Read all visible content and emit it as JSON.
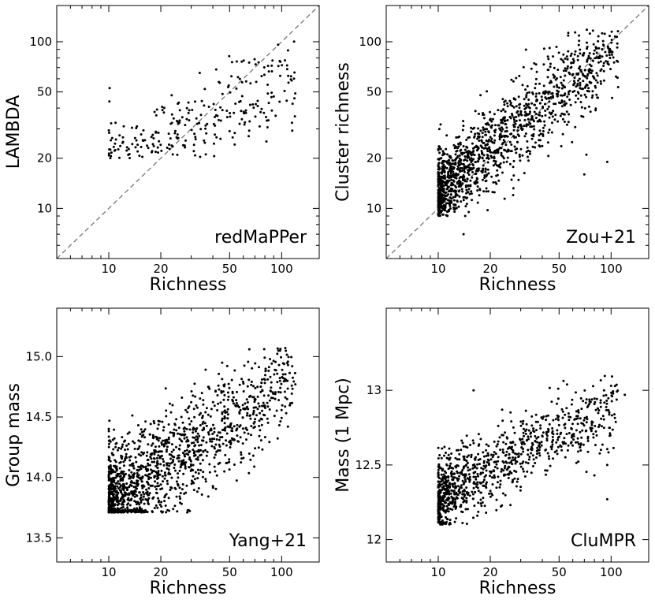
{
  "figure_title": "",
  "chart_data": [
    {
      "id": "panel-redmapper",
      "type": "scatter",
      "panel_label": "redMaPPer",
      "xlabel": "Richness",
      "ylabel": "LAMBDA",
      "xscale": "log",
      "yscale": "log",
      "xlim": [
        5,
        165
      ],
      "ylim": [
        5,
        165
      ],
      "xticks": [
        10,
        20,
        50,
        100
      ],
      "xtick_labels": [
        "10",
        "20",
        "50",
        "100"
      ],
      "yticks": [
        10,
        20,
        50,
        100
      ],
      "ytick_labels": [
        "10",
        "20",
        "50",
        "100"
      ],
      "diagonal_line": true,
      "legend": "none",
      "points_description": "approx. 500 cluster points",
      "n_points": 500,
      "seed": 11,
      "x_range": [
        10,
        120
      ],
      "y_min": 20,
      "y_max": 110,
      "y_slope": 0.6,
      "y_intercept_log": 0.55,
      "y_scatter_log": 0.16,
      "outliers": []
    },
    {
      "id": "panel-zou21",
      "type": "scatter",
      "panel_label": "Zou+21",
      "xlabel": "Richness",
      "ylabel": "Cluster richness",
      "xscale": "log",
      "yscale": "log",
      "xlim": [
        5,
        165
      ],
      "ylim": [
        5,
        165
      ],
      "xticks": [
        10,
        20,
        50,
        100
      ],
      "xtick_labels": [
        "10",
        "20",
        "50",
        "100"
      ],
      "yticks": [
        10,
        20,
        50,
        100
      ],
      "ytick_labels": [
        "10",
        "20",
        "50",
        "100"
      ],
      "diagonal_line": true,
      "legend": "none",
      "points_description": "approx. 1500 cluster points",
      "n_points": 1500,
      "seed": 23,
      "x_range": [
        10,
        110
      ],
      "y_min": 9,
      "y_max": 120,
      "y_slope": 0.85,
      "y_intercept_log": 0.25,
      "y_scatter_log": 0.13,
      "outliers": [
        [
          14,
          7
        ],
        [
          70,
          16
        ],
        [
          95,
          19
        ],
        [
          72,
          21
        ]
      ]
    },
    {
      "id": "panel-yang21",
      "type": "scatter",
      "panel_label": "Yang+21",
      "xlabel": "Richness",
      "ylabel": "Group mass",
      "xscale": "log",
      "yscale": "linear",
      "xlim": [
        5,
        165
      ],
      "ylim": [
        13.3,
        15.4
      ],
      "xticks": [
        10,
        20,
        50,
        100
      ],
      "xtick_labels": [
        "10",
        "20",
        "50",
        "100"
      ],
      "yticks": [
        13.5,
        14.0,
        14.5,
        15.0
      ],
      "ytick_labels": [
        "13.5",
        "14.0",
        "14.5",
        "15.0"
      ],
      "diagonal_line": false,
      "legend": "none",
      "points_description": "approx. 1500 group points",
      "n_points": 1500,
      "seed": 37,
      "x_range": [
        10,
        120
      ],
      "y_min": 13.71,
      "y_max": 15.08,
      "y_slope": 0.95,
      "y_intercept_log": 12.85,
      "y_scatter_log": 0.22,
      "outliers": [
        [
          105,
          15.07
        ],
        [
          65,
          15.06
        ],
        [
          120,
          14.77
        ]
      ]
    },
    {
      "id": "panel-clumpr",
      "type": "scatter",
      "panel_label": "CluMPR",
      "xlabel": "Richness",
      "ylabel": "Mass (1 Mpc)",
      "xscale": "log",
      "yscale": "linear",
      "xlim": [
        5,
        165
      ],
      "ylim": [
        11.85,
        13.55
      ],
      "xticks": [
        10,
        20,
        50,
        100
      ],
      "xtick_labels": [
        "10",
        "20",
        "50",
        "100"
      ],
      "yticks": [
        12,
        12.5,
        13
      ],
      "ytick_labels": [
        "12",
        "12.5",
        "13"
      ],
      "diagonal_line": false,
      "legend": "none",
      "points_description": "approx. 1000 cluster points",
      "n_points": 1000,
      "seed": 53,
      "x_range": [
        10,
        110
      ],
      "y_min": 12.1,
      "y_max": 13.1,
      "y_slope": 0.6,
      "y_intercept_log": 11.7,
      "y_scatter_log": 0.12,
      "outliers": [
        [
          16,
          13.0
        ],
        [
          95,
          12.27
        ],
        [
          80,
          12.43
        ],
        [
          95,
          12.5
        ],
        [
          100,
          13.03
        ],
        [
          120,
          12.97
        ]
      ]
    }
  ]
}
